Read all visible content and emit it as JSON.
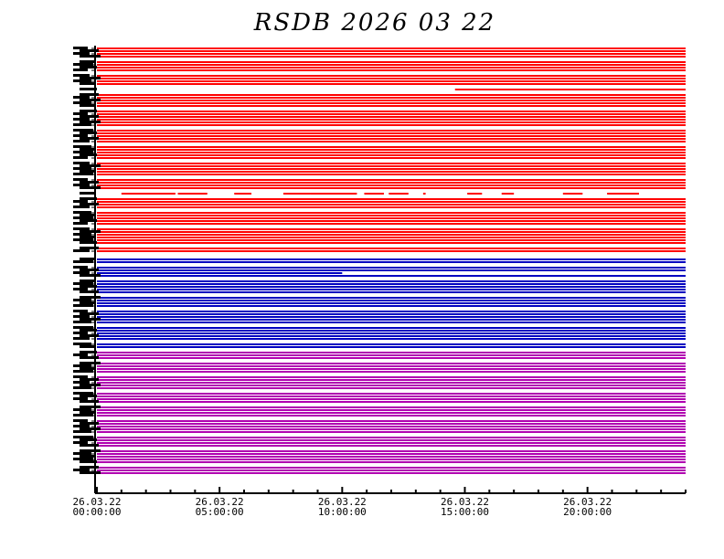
{
  "chart_data": {
    "type": "timeline",
    "title": "RSDB  2026  03  22",
    "x_unit": "hours",
    "xlim": [
      0,
      24
    ],
    "x_ticks": [
      {
        "hour": 0,
        "date": "26.03.22",
        "time": "00:00:00"
      },
      {
        "hour": 5,
        "date": "26.03.22",
        "time": "05:00:00"
      },
      {
        "hour": 10,
        "date": "26.03.22",
        "time": "10:00:00"
      },
      {
        "hour": 15,
        "date": "26.03.22",
        "time": "15:00:00"
      },
      {
        "hour": 20,
        "date": "26.03.22",
        "time": "20:00:00"
      }
    ],
    "minor_tick_every_hours": 1,
    "groups": [
      {
        "color": "#ff0000",
        "rows": [
          [
            [
              0,
              24
            ]
          ],
          [
            [
              0,
              24
            ]
          ],
          [
            [
              0,
              24
            ]
          ],
          [
            [
              0,
              24
            ]
          ],
          [],
          [
            [
              0,
              24
            ]
          ],
          [
            [
              0,
              24
            ]
          ],
          [
            [
              0,
              24
            ]
          ],
          [
            [
              0,
              24
            ]
          ],
          [],
          [
            [
              0,
              24
            ]
          ],
          [
            [
              0,
              24
            ]
          ],
          [
            [
              0,
              24
            ]
          ],
          [
            [
              0,
              24
            ]
          ],
          [],
          [
            [
              14.6,
              24
            ]
          ],
          [],
          [
            [
              0,
              24
            ]
          ],
          [
            [
              0,
              24
            ]
          ],
          [
            [
              0,
              24
            ]
          ],
          [
            [
              0,
              24
            ]
          ],
          [
            [
              0,
              24
            ]
          ],
          [],
          [
            [
              0,
              24
            ]
          ],
          [
            [
              0,
              24
            ]
          ],
          [
            [
              0,
              24
            ]
          ],
          [
            [
              0,
              24
            ]
          ],
          [
            [
              0,
              24
            ]
          ],
          [
            [
              0,
              24
            ]
          ],
          [],
          [
            [
              0,
              24
            ]
          ],
          [
            [
              0,
              24
            ]
          ],
          [
            [
              0,
              24
            ]
          ],
          [
            [
              0,
              24
            ]
          ],
          [
            [
              0,
              24
            ]
          ],
          [],
          [
            [
              0,
              24
            ]
          ],
          [
            [
              0,
              24
            ]
          ],
          [
            [
              0,
              24
            ]
          ],
          [
            [
              0,
              24
            ]
          ],
          [
            [
              0,
              24
            ]
          ],
          [],
          [
            [
              0,
              24
            ]
          ],
          [
            [
              0,
              24
            ]
          ],
          [
            [
              0,
              24
            ]
          ],
          [
            [
              0,
              24
            ]
          ],
          [
            [
              0,
              24
            ]
          ],
          [],
          [
            [
              0,
              24
            ]
          ],
          [
            [
              0,
              24
            ]
          ],
          [
            [
              0,
              24
            ]
          ],
          [
            [
              0,
              24
            ]
          ],
          [],
          [
            [
              1.0,
              3.2
            ],
            [
              3.3,
              4.5
            ],
            [
              5.6,
              6.3
            ],
            [
              7.6,
              8.7
            ],
            [
              8.7,
              10.6
            ],
            [
              10.9,
              11.7
            ],
            [
              11.9,
              12.7
            ],
            [
              13.3,
              13.4
            ],
            [
              15.1,
              15.7
            ],
            [
              16.5,
              17.0
            ],
            [
              19.0,
              19.8
            ],
            [
              20.8,
              22.1
            ]
          ],
          [],
          [
            [
              0,
              24
            ]
          ],
          [
            [
              0,
              24
            ]
          ],
          [
            [
              0,
              24
            ]
          ],
          [
            [
              0,
              24
            ]
          ],
          [],
          [
            [
              0,
              24
            ]
          ],
          [
            [
              0,
              24
            ]
          ],
          [
            [
              0,
              24
            ]
          ],
          [
            [
              0,
              24
            ]
          ],
          [
            [
              0,
              24
            ]
          ],
          [],
          [
            [
              0,
              24
            ]
          ],
          [
            [
              0,
              24
            ]
          ],
          [
            [
              0,
              24
            ]
          ],
          [
            [
              0,
              24
            ]
          ],
          [
            [
              0,
              24
            ]
          ],
          [
            [
              0,
              24
            ]
          ],
          [],
          [
            [
              0,
              24
            ]
          ],
          [
            [
              0,
              24
            ]
          ]
        ]
      },
      {
        "color": "#0000c0",
        "rows": [
          [],
          [],
          [
            [
              0,
              24
            ]
          ],
          [
            [
              0,
              24
            ]
          ],
          [],
          [
            [
              0,
              24
            ]
          ],
          [
            [
              0,
              24
            ]
          ],
          [
            [
              0,
              10.0
            ]
          ],
          [
            [
              0,
              24
            ]
          ],
          [],
          [
            [
              0,
              24
            ]
          ],
          [
            [
              0,
              24
            ]
          ],
          [
            [
              0,
              24
            ]
          ],
          [
            [
              0,
              24
            ]
          ],
          [
            [
              0,
              24
            ]
          ],
          [],
          [
            [
              0,
              24
            ]
          ],
          [
            [
              0,
              24
            ]
          ],
          [
            [
              0,
              24
            ]
          ],
          [
            [
              0,
              24
            ]
          ],
          [],
          [
            [
              0,
              24
            ]
          ],
          [
            [
              0,
              24
            ]
          ],
          [
            [
              0,
              24
            ]
          ],
          [
            [
              0,
              24
            ]
          ],
          [
            [
              0,
              24
            ]
          ],
          [],
          [
            [
              0,
              24
            ]
          ],
          [
            [
              0,
              24
            ]
          ],
          [
            [
              0,
              24
            ]
          ],
          [
            [
              0,
              24
            ]
          ],
          [
            [
              0,
              24
            ]
          ],
          [],
          [
            [
              0,
              24
            ]
          ],
          [
            [
              0,
              24
            ]
          ]
        ]
      },
      {
        "color": "#b000b0",
        "rows": [
          [],
          [
            [
              0,
              24
            ]
          ],
          [
            [
              0,
              24
            ]
          ],
          [
            [
              0,
              24
            ]
          ],
          [],
          [
            [
              0,
              24
            ]
          ],
          [
            [
              0,
              24
            ]
          ],
          [
            [
              0,
              24
            ]
          ],
          [
            [
              0,
              24
            ]
          ],
          [],
          [
            [
              0,
              24
            ]
          ],
          [
            [
              0,
              24
            ]
          ],
          [
            [
              0,
              24
            ]
          ],
          [
            [
              0,
              24
            ]
          ],
          [
            [
              0,
              24
            ]
          ],
          [],
          [
            [
              0,
              24
            ]
          ],
          [
            [
              0,
              24
            ]
          ],
          [
            [
              0,
              24
            ]
          ],
          [
            [
              0,
              24
            ]
          ],
          [],
          [
            [
              0,
              24
            ]
          ],
          [
            [
              0,
              24
            ]
          ],
          [
            [
              0,
              24
            ]
          ],
          [
            [
              0,
              24
            ]
          ],
          [],
          [
            [
              0,
              24
            ]
          ],
          [
            [
              0,
              24
            ]
          ],
          [
            [
              0,
              24
            ]
          ],
          [
            [
              0,
              24
            ]
          ],
          [
            [
              0,
              24
            ]
          ],
          [],
          [
            [
              0,
              24
            ]
          ],
          [
            [
              0,
              24
            ]
          ],
          [
            [
              0,
              24
            ]
          ],
          [
            [
              0,
              24
            ]
          ],
          [],
          [
            [
              0,
              24
            ]
          ],
          [
            [
              0,
              24
            ]
          ],
          [
            [
              0,
              24
            ]
          ],
          [
            [
              0,
              24
            ]
          ],
          [
            [
              0,
              24
            ]
          ],
          [],
          [
            [
              0,
              24
            ]
          ],
          [
            [
              0,
              24
            ]
          ],
          [
            [
              0,
              24
            ]
          ]
        ]
      }
    ]
  }
}
